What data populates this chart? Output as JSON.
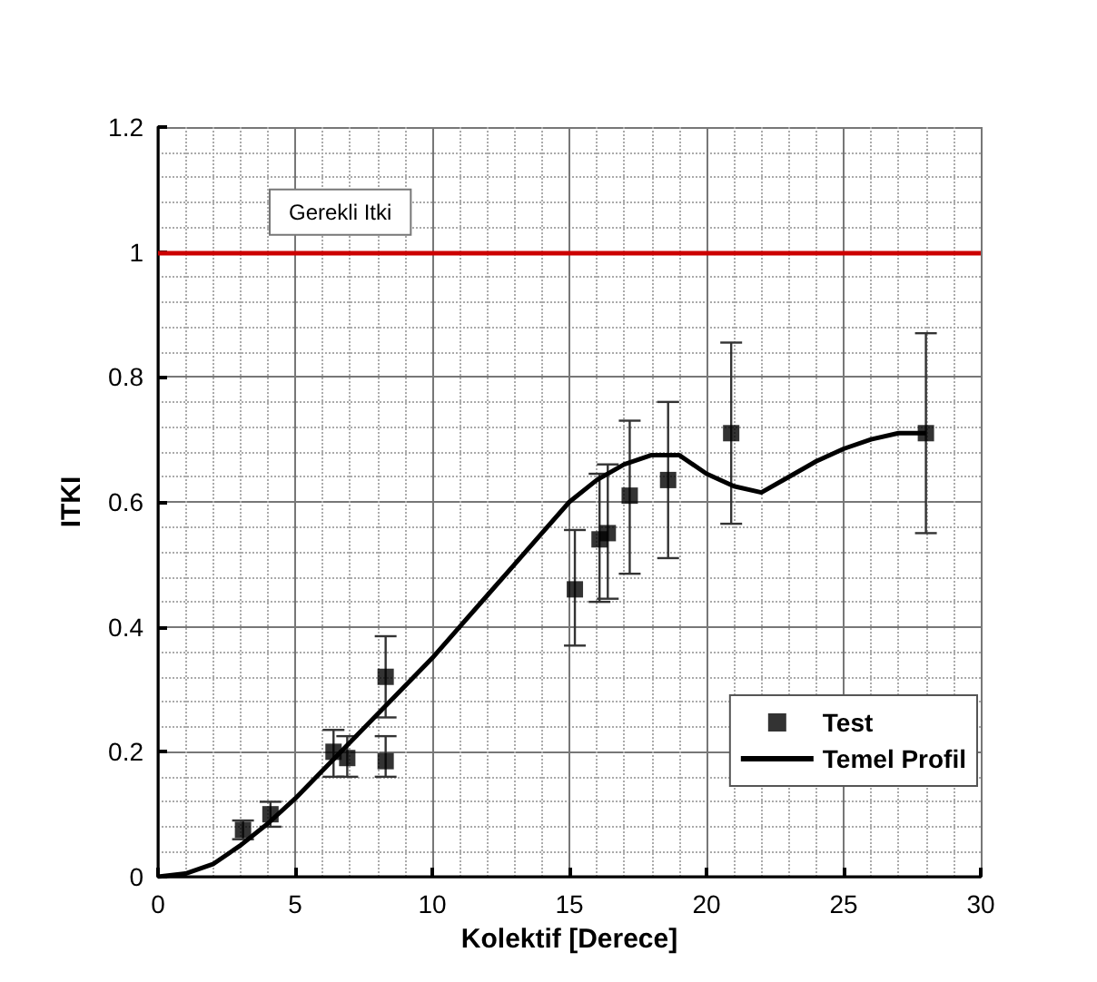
{
  "chart_data": {
    "type": "scatter",
    "xlabel": "Kolektif [Derece]",
    "ylabel": "ITKI",
    "xlim": [
      0,
      30
    ],
    "xticks": [
      0,
      5,
      10,
      15,
      20,
      25,
      30
    ],
    "ylim": [
      0,
      1.2
    ],
    "yticks": [
      0,
      0.2,
      0.4,
      0.6,
      0.8,
      1,
      1.2
    ],
    "grid": true,
    "legend": "bottom right",
    "ref_lines": [
      {
        "axis": "y",
        "value": 1,
        "label": "Gerekli Itki",
        "color": "#cc0000"
      }
    ],
    "series": [
      {
        "name": "Test",
        "marker": "square",
        "color": "#000000",
        "x": [
          3.1,
          4.1,
          6.4,
          6.9,
          8.3,
          8.3,
          15.2,
          16.1,
          16.4,
          17.2,
          18.6,
          20.9,
          28
        ],
        "values": [
          0.075,
          0.1,
          0.2,
          0.19,
          0.32,
          0.185,
          0.46,
          0.54,
          0.55,
          0.61,
          0.635,
          0.71,
          0.71
        ],
        "errors": [
          [
            0.06,
            0.09
          ],
          [
            0.08,
            0.12
          ],
          [
            0.16,
            0.235
          ],
          [
            0.16,
            0.225
          ],
          [
            0.255,
            0.385
          ],
          [
            0.16,
            0.225
          ],
          [
            0.37,
            0.555
          ],
          [
            0.44,
            0.645
          ],
          [
            0.445,
            0.66
          ],
          [
            0.485,
            0.73
          ],
          [
            0.51,
            0.76
          ],
          [
            0.565,
            0.855
          ],
          [
            0.55,
            0.87
          ]
        ]
      },
      {
        "name": "Temel Profil",
        "type": "line",
        "marker": "none",
        "line_style": "solid",
        "color": "#000000",
        "x": [
          0,
          1,
          2,
          3,
          4,
          5,
          6,
          7,
          8,
          9,
          10,
          11,
          12,
          13,
          14,
          15,
          16,
          17,
          18,
          19,
          20,
          21,
          22,
          23,
          24,
          25,
          26,
          27,
          28
        ],
        "values": [
          0,
          0.005,
          0.02,
          0.05,
          0.085,
          0.125,
          0.17,
          0.215,
          0.26,
          0.305,
          0.35,
          0.4,
          0.45,
          0.5,
          0.55,
          0.6,
          0.635,
          0.66,
          0.675,
          0.675,
          0.645,
          0.625,
          0.615,
          0.64,
          0.665,
          0.685,
          0.7,
          0.71,
          0.71
        ]
      }
    ]
  }
}
